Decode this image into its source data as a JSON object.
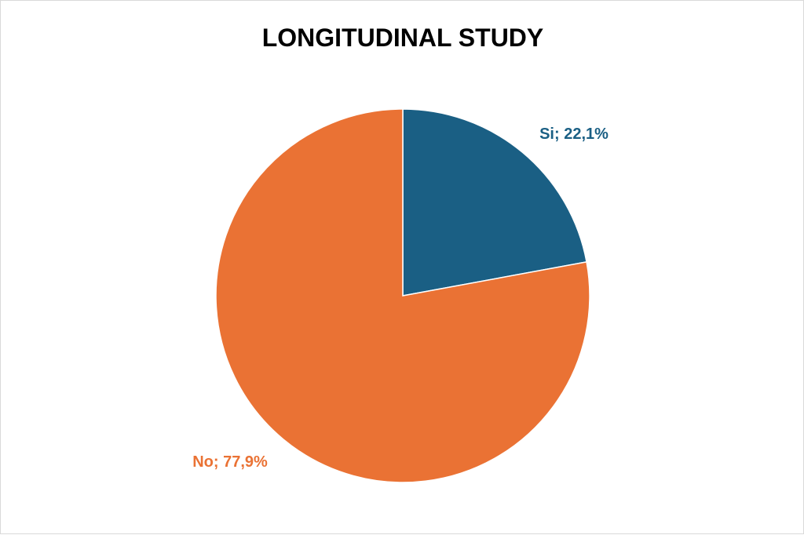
{
  "chart_data": {
    "type": "pie",
    "title": "LONGITUDINAL STUDY",
    "slices": [
      {
        "label": "Si; 22,1%",
        "name": "Si",
        "value": 22.1,
        "color": "#1a5f84"
      },
      {
        "label": "No; 77,9%",
        "name": "No",
        "value": 77.9,
        "color": "#ea7234"
      }
    ],
    "legend": "none"
  }
}
